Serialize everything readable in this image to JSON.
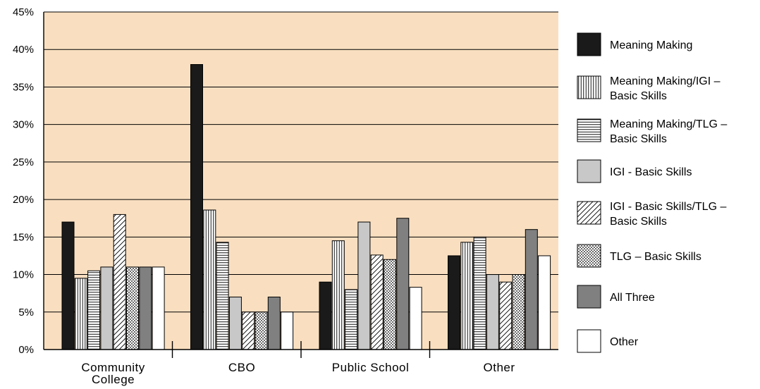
{
  "chart_data": {
    "type": "bar",
    "title": "",
    "xlabel": "",
    "ylabel": "",
    "ylim": [
      0,
      45
    ],
    "y_ticks": [
      "0%",
      "5%",
      "10%",
      "15%",
      "20%",
      "25%",
      "30%",
      "35%",
      "40%",
      "45%"
    ],
    "categories": [
      [
        "Community",
        "College"
      ],
      [
        "CBO"
      ],
      [
        "Public School"
      ],
      [
        "Other"
      ]
    ],
    "grid": true,
    "legend_position": "right",
    "plot_background": "#f9dfc0",
    "series": [
      {
        "name": "Meaning Making",
        "values": [
          17,
          38,
          9,
          12.5
        ],
        "fill": "#1a1a1a",
        "pattern": "solid"
      },
      {
        "name": [
          "Meaning Making/IGI –",
          "Basic Skills"
        ],
        "values": [
          9.5,
          18.6,
          14.5,
          14.3
        ],
        "fill": "#ffffff",
        "pattern": "vertical"
      },
      {
        "name": [
          "Meaning Making/TLG –",
          "Basic Skills"
        ],
        "values": [
          10.5,
          14.3,
          8,
          15
        ],
        "fill": "#ffffff",
        "pattern": "horizontal"
      },
      {
        "name": "IGI - Basic Skills",
        "values": [
          11,
          7,
          17,
          10
        ],
        "fill": "#c8c8c8",
        "pattern": "solid"
      },
      {
        "name": [
          "IGI - Basic Skills/TLG –",
          "Basic Skills"
        ],
        "values": [
          18,
          5,
          12.6,
          9
        ],
        "fill": "#ffffff",
        "pattern": "diagonal"
      },
      {
        "name": "TLG – Basic Skills",
        "values": [
          11,
          5,
          12,
          10
        ],
        "fill": "#ffffff",
        "pattern": "dots"
      },
      {
        "name": "All Three",
        "values": [
          11,
          7,
          17.5,
          16
        ],
        "fill": "#808080",
        "pattern": "solid"
      },
      {
        "name": "Other",
        "values": [
          11,
          5,
          8.3,
          12.5
        ],
        "fill": "#ffffff",
        "pattern": "solid"
      }
    ]
  }
}
